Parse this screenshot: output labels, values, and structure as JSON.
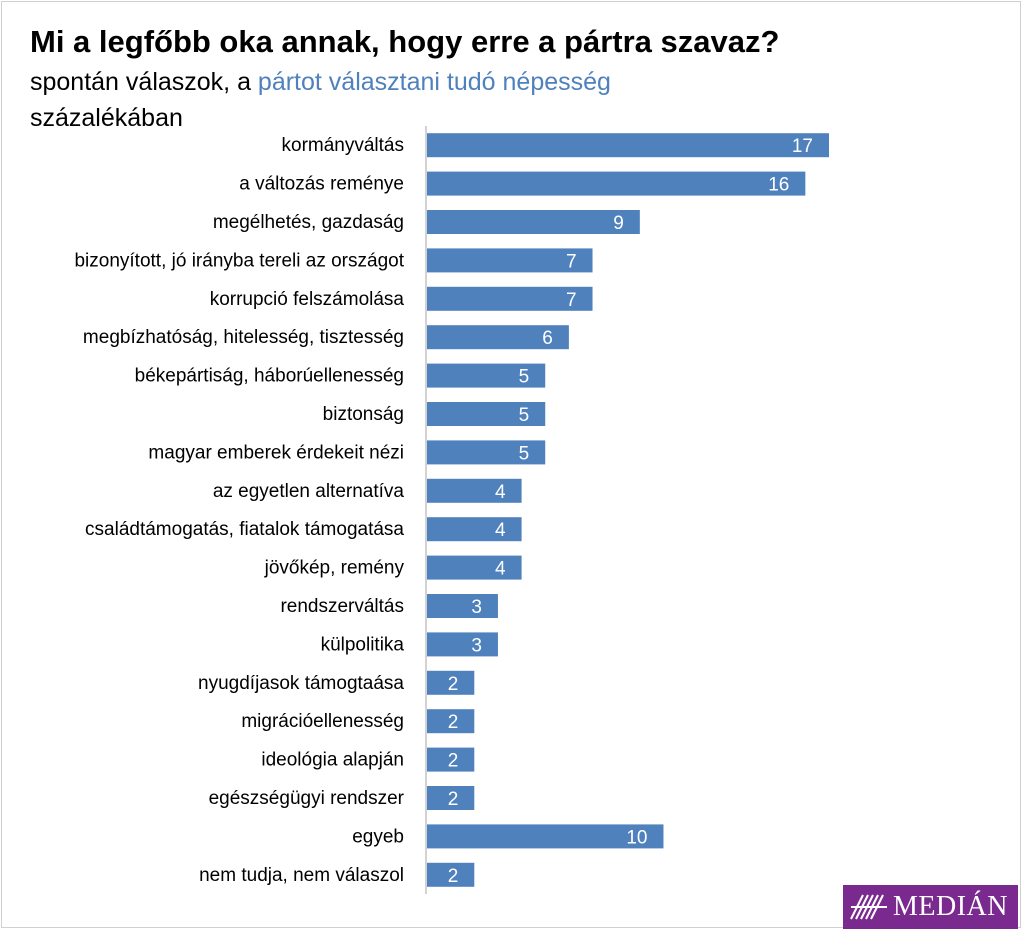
{
  "header": {
    "title": "Mi a legfőbb oka annak, hogy erre a pártra szavaz?",
    "subtitle_prefix": "spontán válaszok, a ",
    "subtitle_highlight": "pártot választani tudó népesség",
    "subtitle_line2": "százalékában"
  },
  "logo": {
    "text": "MEDIÁN"
  },
  "colors": {
    "bar": "#4f81bd",
    "highlight": "#4f81bd",
    "logo_bg": "#7a2a8f"
  },
  "chart_data": {
    "type": "bar",
    "orientation": "horizontal",
    "title": "Mi a legfőbb oka annak, hogy erre a pártra szavaz?",
    "xlabel": "",
    "ylabel": "",
    "xlim": [
      0,
      25
    ],
    "grid": false,
    "categories": [
      "kormányváltás",
      "a változás reménye",
      "megélhetés, gazdaság",
      "bizonyított, jó irányba tereli az országot",
      "korrupció felszámolása",
      "megbízhatóság, hitelesség, tisztesség",
      "békepártiság, háborúellenesség",
      "biztonság",
      "magyar emberek érdekeit nézi",
      "az egyetlen alternatíva",
      "családtámogatás, fiatalok támogatása",
      "jövőkép, remény",
      "rendszerváltás",
      "külpolitika",
      "nyugdíjasok támogtaása",
      "migrációellenesség",
      "ideológia alapján",
      "egészségügyi rendszer",
      "egyeb",
      "nem tudja, nem válaszol"
    ],
    "values": [
      17,
      16,
      9,
      7,
      7,
      6,
      5,
      5,
      5,
      4,
      4,
      4,
      3,
      3,
      2,
      2,
      2,
      2,
      10,
      2
    ]
  }
}
